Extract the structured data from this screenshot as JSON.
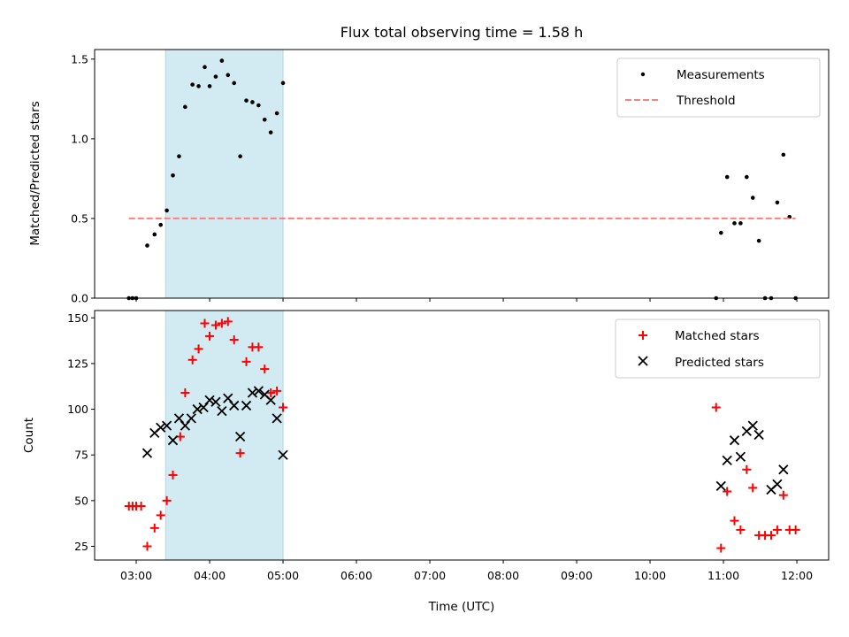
{
  "chart_data": [
    {
      "type": "scatter",
      "title": "Flux total observing time = 1.58 h",
      "xlabel": "",
      "ylabel": "Matched/Predicted stars",
      "xlim": [
        "02:26",
        "12:26"
      ],
      "ylim": [
        0,
        1.56
      ],
      "yticks": [
        0.0,
        0.5,
        1.0,
        1.5
      ],
      "ytick_labels": [
        "0.0",
        "0.5",
        "1.0",
        "1.5"
      ],
      "shaded_span": [
        "03:24",
        "05:00"
      ],
      "shaded_color": "#add8e6",
      "legend_position": "upper right",
      "series": [
        {
          "name": "Measurements",
          "kind": "points",
          "color": "#000000",
          "x": [
            "02:54",
            "02:57",
            "03:00",
            "03:09",
            "03:15",
            "03:20",
            "03:25",
            "03:30",
            "03:35",
            "03:40",
            "03:46",
            "03:51",
            "03:56",
            "04:00",
            "04:05",
            "04:10",
            "04:15",
            "04:20",
            "04:25",
            "04:30",
            "04:35",
            "04:40",
            "04:45",
            "04:50",
            "04:55",
            "05:00",
            "10:54",
            "10:58",
            "11:03",
            "11:09",
            "11:14",
            "11:19",
            "11:24",
            "11:29",
            "11:34",
            "11:39",
            "11:44",
            "11:49",
            "11:54",
            "11:59"
          ],
          "y": [
            0.0,
            0.0,
            0.0,
            0.33,
            0.4,
            0.46,
            0.55,
            0.77,
            0.89,
            1.2,
            1.34,
            1.33,
            1.45,
            1.33,
            1.39,
            1.49,
            1.4,
            1.35,
            0.89,
            1.24,
            1.23,
            1.21,
            1.12,
            1.04,
            1.16,
            1.35,
            0.0,
            0.41,
            0.76,
            0.47,
            0.47,
            0.76,
            0.63,
            0.36,
            0.0,
            0.0,
            0.6,
            0.9,
            0.51,
            0.0
          ]
        },
        {
          "name": "Threshold",
          "kind": "dashed-line",
          "color": "#ff7f7f",
          "x": [
            "02:54",
            "11:59"
          ],
          "y": [
            0.5,
            0.5
          ]
        }
      ]
    },
    {
      "type": "scatter",
      "title": "",
      "xlabel": "Time (UTC)",
      "ylabel": "Count",
      "xlim": [
        "02:26",
        "12:26"
      ],
      "ylim": [
        17.5,
        154
      ],
      "yticks": [
        25,
        50,
        75,
        100,
        125,
        150
      ],
      "ytick_labels": [
        "25",
        "50",
        "75",
        "100",
        "125",
        "150"
      ],
      "xticks": [
        "03:00",
        "04:00",
        "05:00",
        "06:00",
        "07:00",
        "08:00",
        "09:00",
        "10:00",
        "11:00",
        "12:00"
      ],
      "shaded_span": [
        "03:24",
        "05:00"
      ],
      "shaded_color": "#add8e6",
      "legend_position": "upper right",
      "series": [
        {
          "name": "Matched stars",
          "kind": "plus",
          "color": "#ff0000",
          "x": [
            "02:54",
            "02:57",
            "03:00",
            "03:04",
            "03:09",
            "03:15",
            "03:20",
            "03:25",
            "03:30",
            "03:36",
            "03:40",
            "03:46",
            "03:51",
            "03:56",
            "04:00",
            "04:05",
            "04:10",
            "04:15",
            "04:20",
            "04:25",
            "04:30",
            "04:35",
            "04:40",
            "04:45",
            "04:50",
            "04:55",
            "05:00",
            "10:54",
            "10:58",
            "11:03",
            "11:09",
            "11:14",
            "11:19",
            "11:24",
            "11:29",
            "11:34",
            "11:39",
            "11:44",
            "11:49",
            "11:54",
            "11:59"
          ],
          "y": [
            47,
            47,
            47,
            47,
            25,
            35,
            42,
            50,
            64,
            85,
            109,
            127,
            133,
            147,
            140,
            146,
            147,
            148,
            138,
            76,
            126,
            134,
            134,
            122,
            109,
            110,
            101,
            101,
            24,
            55,
            39,
            34,
            67,
            57,
            31,
            31,
            31,
            34,
            53,
            34,
            34
          ]
        },
        {
          "name": "Predicted stars",
          "kind": "x",
          "color": "#000000",
          "x": [
            "03:09",
            "03:15",
            "03:20",
            "03:25",
            "03:30",
            "03:35",
            "03:40",
            "03:45",
            "03:50",
            "03:55",
            "04:00",
            "04:05",
            "04:10",
            "04:15",
            "04:20",
            "04:25",
            "04:30",
            "04:35",
            "04:40",
            "04:45",
            "04:50",
            "04:55",
            "05:00",
            "10:58",
            "11:03",
            "11:09",
            "11:14",
            "11:19",
            "11:24",
            "11:29",
            "11:39",
            "11:44",
            "11:49"
          ],
          "y": [
            76,
            87,
            90,
            91,
            83,
            95,
            91,
            95,
            100,
            101,
            105,
            104,
            99,
            106,
            102,
            85,
            102,
            109,
            110,
            108,
            105,
            95,
            75,
            58,
            72,
            83,
            74,
            88,
            91,
            86,
            56,
            59,
            67
          ]
        }
      ]
    }
  ]
}
